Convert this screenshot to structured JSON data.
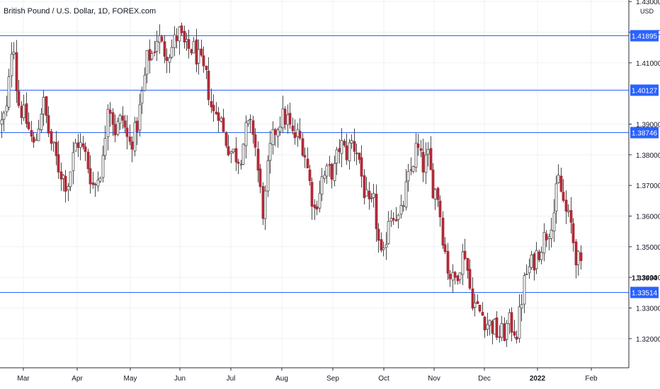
{
  "header": {
    "title": "British Pound / U.S. Dollar, 1D, FOREX.com",
    "currency": "USD"
  },
  "colors": {
    "grid": "#eef0f3",
    "axis_line": "#2a2e39",
    "bull_body": "#ffffff",
    "bear_body": "#b02a37",
    "wick": "#4a4a4a",
    "hline": "#2962ff",
    "label_bg": "#2962ff"
  },
  "chart_data": {
    "type": "candlestick",
    "title": "British Pound / U.S. Dollar, 1D, FOREX.com",
    "y_axis": {
      "min": 1.3105,
      "max": 1.4305,
      "ticks": [
        "1.32000",
        "1.33000",
        "1.34000",
        "1.35000",
        "1.36000",
        "1.37000",
        "1.38000",
        "1.39000",
        "1.41000",
        "1.42000",
        "1.43000"
      ],
      "position": "right",
      "grid": true
    },
    "x_axis": {
      "ticks": [
        {
          "label": "Mar",
          "bold": false
        },
        {
          "label": "Apr",
          "bold": false
        },
        {
          "label": "May",
          "bold": false
        },
        {
          "label": "Jun",
          "bold": false
        },
        {
          "label": "Jul",
          "bold": false
        },
        {
          "label": "Aug",
          "bold": false
        },
        {
          "label": "Sep",
          "bold": false
        },
        {
          "label": "Oct",
          "bold": false
        },
        {
          "label": "Nov",
          "bold": false
        },
        {
          "label": "Dec",
          "bold": false
        },
        {
          "label": "2022",
          "bold": true
        },
        {
          "label": "Feb",
          "bold": false
        }
      ],
      "grid": true
    },
    "horizontal_lines": [
      {
        "value": 1.41895,
        "label": "1.41895"
      },
      {
        "value": 1.40127,
        "label": "1.40127"
      },
      {
        "value": 1.38746,
        "label": "1.38746"
      },
      {
        "value": 1.33514,
        "label": "1.33514"
      }
    ],
    "last_price": {
      "value": 1.33994,
      "label": "1.33994"
    },
    "series_anchors_close": [
      [
        0,
        1.389
      ],
      [
        10,
        1.395
      ],
      [
        18,
        1.422
      ],
      [
        24,
        1.398
      ],
      [
        38,
        1.39
      ],
      [
        48,
        1.382
      ],
      [
        60,
        1.398
      ],
      [
        70,
        1.385
      ],
      [
        82,
        1.376
      ],
      [
        95,
        1.37
      ],
      [
        108,
        1.385
      ],
      [
        120,
        1.38
      ],
      [
        132,
        1.369
      ],
      [
        145,
        1.378
      ],
      [
        152,
        1.399
      ],
      [
        162,
        1.388
      ],
      [
        172,
        1.392
      ],
      [
        182,
        1.383
      ],
      [
        192,
        1.388
      ],
      [
        200,
        1.399
      ],
      [
        208,
        1.412
      ],
      [
        215,
        1.413
      ],
      [
        222,
        1.419
      ],
      [
        230,
        1.414
      ],
      [
        240,
        1.414
      ],
      [
        252,
        1.42
      ],
      [
        262,
        1.414
      ],
      [
        272,
        1.415
      ],
      [
        282,
        1.41
      ],
      [
        292,
        1.404
      ],
      [
        300,
        1.393
      ],
      [
        308,
        1.395
      ],
      [
        316,
        1.386
      ],
      [
        326,
        1.381
      ],
      [
        338,
        1.379
      ],
      [
        348,
        1.389
      ],
      [
        358,
        1.388
      ],
      [
        366,
        1.37
      ],
      [
        372,
        1.36
      ],
      [
        380,
        1.38
      ],
      [
        388,
        1.388
      ],
      [
        396,
        1.392
      ],
      [
        405,
        1.392
      ],
      [
        412,
        1.386
      ],
      [
        420,
        1.386
      ],
      [
        428,
        1.383
      ],
      [
        436,
        1.372
      ],
      [
        444,
        1.362
      ],
      [
        454,
        1.372
      ],
      [
        462,
        1.374
      ],
      [
        472,
        1.375
      ],
      [
        480,
        1.384
      ],
      [
        488,
        1.38
      ],
      [
        496,
        1.384
      ],
      [
        505,
        1.381
      ],
      [
        512,
        1.37
      ],
      [
        520,
        1.362
      ],
      [
        528,
        1.364
      ],
      [
        535,
        1.35
      ],
      [
        540,
        1.343
      ],
      [
        548,
        1.36
      ],
      [
        556,
        1.362
      ],
      [
        564,
        1.358
      ],
      [
        572,
        1.368
      ],
      [
        580,
        1.375
      ],
      [
        588,
        1.383
      ],
      [
        596,
        1.376
      ],
      [
        604,
        1.379
      ],
      [
        610,
        1.37
      ],
      [
        618,
        1.367
      ],
      [
        626,
        1.352
      ],
      [
        632,
        1.343
      ],
      [
        640,
        1.338
      ],
      [
        648,
        1.344
      ],
      [
        656,
        1.349
      ],
      [
        664,
        1.335
      ],
      [
        672,
        1.33
      ],
      [
        680,
        1.328
      ],
      [
        688,
        1.325
      ],
      [
        696,
        1.324
      ],
      [
        704,
        1.321
      ],
      [
        712,
        1.322
      ],
      [
        718,
        1.325
      ],
      [
        724,
        1.324
      ],
      [
        730,
        1.322
      ],
      [
        736,
        1.333
      ],
      [
        742,
        1.341
      ],
      [
        750,
        1.344
      ],
      [
        758,
        1.348
      ],
      [
        766,
        1.352
      ],
      [
        774,
        1.356
      ],
      [
        782,
        1.362
      ],
      [
        788,
        1.372
      ],
      [
        794,
        1.366
      ],
      [
        800,
        1.36
      ],
      [
        806,
        1.357
      ],
      [
        812,
        1.348
      ],
      [
        818,
        1.344
      ],
      [
        822,
        1.3399
      ]
    ]
  }
}
